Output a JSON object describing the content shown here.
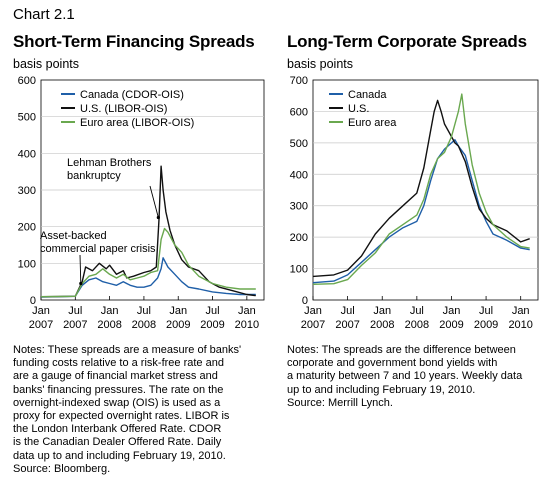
{
  "chart_number": "Chart 2.1",
  "chart_data": [
    {
      "type": "line",
      "title": "Short-Term Financing Spreads",
      "ylabel": "basis points",
      "ylim": [
        0,
        600
      ],
      "yticks": [
        0,
        100,
        200,
        300,
        400,
        500,
        600
      ],
      "x_range": [
        "2007-01",
        "2010-03"
      ],
      "xtick_top": [
        "Jan",
        "Jul",
        "Jan",
        "Jul",
        "Jan",
        "Jul",
        "Jan"
      ],
      "xtick_bottom": [
        "2007",
        "2007",
        "2008",
        "2008",
        "2009",
        "2009",
        "2010"
      ],
      "legend_position": "top-left",
      "grid": "horizontal",
      "series": [
        {
          "name": "Canada (CDOR-OIS)",
          "color": "#1f5fa8",
          "x": [
            2007.0,
            2007.5,
            2007.6,
            2007.7,
            2007.8,
            2007.9,
            2008.0,
            2008.1,
            2008.2,
            2008.3,
            2008.4,
            2008.5,
            2008.6,
            2008.7,
            2008.75,
            2008.78,
            2008.85,
            2008.95,
            2009.05,
            2009.15,
            2009.3,
            2009.5,
            2009.7,
            2009.9,
            2010.13
          ],
          "y": [
            8,
            10,
            40,
            55,
            60,
            50,
            45,
            40,
            50,
            40,
            35,
            35,
            40,
            60,
            85,
            115,
            90,
            70,
            50,
            35,
            30,
            22,
            18,
            15,
            15
          ]
        },
        {
          "name": "U.S. (LIBOR-OIS)",
          "color": "#111111",
          "x": [
            2007.0,
            2007.5,
            2007.6,
            2007.65,
            2007.75,
            2007.85,
            2007.95,
            2008.0,
            2008.1,
            2008.2,
            2008.25,
            2008.35,
            2008.5,
            2008.6,
            2008.68,
            2008.72,
            2008.75,
            2008.78,
            2008.82,
            2008.88,
            2008.95,
            2009.05,
            2009.15,
            2009.3,
            2009.45,
            2009.6,
            2009.8,
            2010.0,
            2010.13
          ],
          "y": [
            9,
            10,
            50,
            90,
            80,
            100,
            85,
            95,
            70,
            80,
            60,
            65,
            75,
            80,
            90,
            220,
            365,
            300,
            240,
            190,
            150,
            110,
            90,
            80,
            50,
            35,
            25,
            15,
            12
          ]
        },
        {
          "name": "Euro area (LIBOR-OIS)",
          "color": "#6aa84f",
          "x": [
            2007.0,
            2007.5,
            2007.6,
            2007.7,
            2007.8,
            2007.9,
            2008.0,
            2008.1,
            2008.2,
            2008.3,
            2008.4,
            2008.5,
            2008.6,
            2008.7,
            2008.75,
            2008.8,
            2008.85,
            2008.95,
            2009.05,
            2009.15,
            2009.3,
            2009.5,
            2009.7,
            2009.9,
            2010.13
          ],
          "y": [
            9,
            10,
            45,
            65,
            70,
            85,
            70,
            60,
            70,
            55,
            60,
            65,
            75,
            80,
            165,
            195,
            185,
            150,
            130,
            95,
            65,
            45,
            35,
            30,
            30
          ]
        }
      ],
      "annotations": [
        {
          "text_lines": [
            "Lehman Brothers",
            "bankruptcy"
          ],
          "x": 2008.71,
          "y": 225
        },
        {
          "text_lines": [
            "Asset-backed",
            "commercial paper crisis"
          ],
          "x": 2007.58,
          "y": 45
        }
      ]
    },
    {
      "type": "line",
      "title": "Long-Term Corporate Spreads",
      "ylabel": "basis points",
      "ylim": [
        0,
        700
      ],
      "yticks": [
        0,
        100,
        200,
        300,
        400,
        500,
        600,
        700
      ],
      "x_range": [
        "2007-01",
        "2010-03"
      ],
      "xtick_top": [
        "Jan",
        "Jul",
        "Jan",
        "Jul",
        "Jan",
        "Jul",
        "Jan"
      ],
      "xtick_bottom": [
        "2007",
        "2007",
        "2008",
        "2008",
        "2009",
        "2009",
        "2010"
      ],
      "legend_position": "top-left",
      "grid": "horizontal",
      "series": [
        {
          "name": "Canada",
          "color": "#1f5fa8",
          "x": [
            2007.0,
            2007.3,
            2007.5,
            2007.7,
            2007.9,
            2008.1,
            2008.3,
            2008.5,
            2008.6,
            2008.7,
            2008.8,
            2008.9,
            2009.0,
            2009.05,
            2009.1,
            2009.2,
            2009.3,
            2009.4,
            2009.5,
            2009.6,
            2009.8,
            2010.0,
            2010.13
          ],
          "y": [
            55,
            60,
            80,
            120,
            160,
            200,
            230,
            250,
            300,
            380,
            450,
            480,
            500,
            510,
            490,
            460,
            380,
            300,
            250,
            210,
            190,
            165,
            160
          ]
        },
        {
          "name": "U.S.",
          "color": "#111111",
          "x": [
            2007.0,
            2007.3,
            2007.5,
            2007.7,
            2007.9,
            2008.1,
            2008.3,
            2008.5,
            2008.6,
            2008.7,
            2008.75,
            2008.8,
            2008.85,
            2008.9,
            2009.0,
            2009.05,
            2009.1,
            2009.2,
            2009.3,
            2009.4,
            2009.5,
            2009.6,
            2009.8,
            2010.0,
            2010.13
          ],
          "y": [
            75,
            80,
            95,
            140,
            210,
            260,
            300,
            340,
            420,
            540,
            600,
            635,
            600,
            560,
            520,
            500,
            490,
            440,
            360,
            290,
            260,
            240,
            220,
            185,
            195
          ]
        },
        {
          "name": "Euro area",
          "color": "#6aa84f",
          "x": [
            2007.0,
            2007.3,
            2007.5,
            2007.7,
            2007.9,
            2008.1,
            2008.3,
            2008.5,
            2008.6,
            2008.7,
            2008.8,
            2008.9,
            2009.0,
            2009.1,
            2009.15,
            2009.2,
            2009.3,
            2009.4,
            2009.5,
            2009.6,
            2009.8,
            2010.0,
            2010.13
          ],
          "y": [
            50,
            52,
            65,
            110,
            150,
            210,
            240,
            270,
            320,
            400,
            450,
            470,
            520,
            600,
            655,
            560,
            430,
            340,
            280,
            240,
            200,
            170,
            165
          ]
        }
      ]
    }
  ],
  "notes": {
    "left": [
      "Notes: These spreads are a measure of banks'",
      "funding costs relative to a risk-free rate and",
      "are a gauge of financial market stress and",
      "banks' financing pressures. The rate on the",
      "overnight-indexed swap (OIS) is used as a",
      "proxy for expected overnight rates. LIBOR is",
      "the London Interbank Offered Rate. CDOR",
      "is the Canadian Dealer Offered Rate. Daily",
      "data up to and including February 19, 2010.",
      "Source: Bloomberg."
    ],
    "right": [
      "Notes: The spreads are the difference between",
      "corporate and government bond yields with",
      "a maturity between 7 and 10 years. Weekly data",
      "up to and including February 19, 2010.",
      "Source: Merrill Lynch."
    ]
  }
}
